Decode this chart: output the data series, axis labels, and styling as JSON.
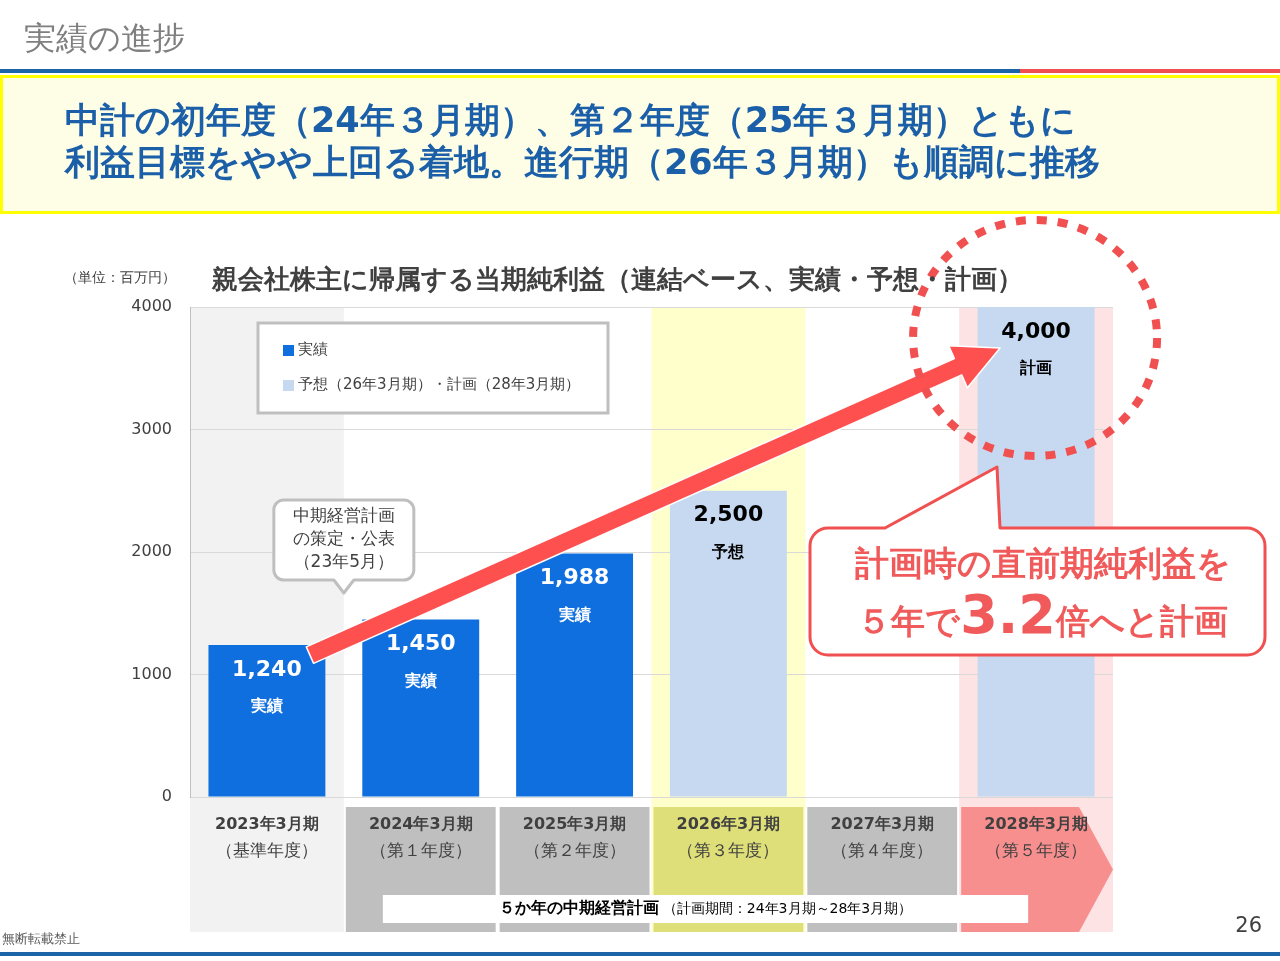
{
  "chart_data": {
    "type": "bar",
    "title": "親会社株主に帰属する当期純利益（連結ベース、実績・予想・計画）",
    "subtitle": "中計の初年度（24年３月期）、第２年度（25年３月期）ともに利益目標をやや上回る着地。進行期（26年３月期）も順調に推移",
    "ylabel": "（単位：百万円）",
    "categories": [
      "2023年3月期（基準年度）",
      "2024年3月期（第１年度）",
      "2025年3月期（第２年度）",
      "2026年3月期（第３年度）",
      "2027年3月期（第４年度）",
      "2028年3月期（第５年度）"
    ],
    "series": [
      {
        "name": "実績",
        "color": "#0f6fde",
        "values": [
          1240,
          1450,
          1988,
          null,
          null,
          null
        ],
        "value_labels": [
          "1,240\n実績",
          "1,450\n実績",
          "1,988\n実績",
          null,
          null,
          null
        ]
      },
      {
        "name": "予想（26年3月期）・計画（28年3月期）",
        "color": "#c6d9f0",
        "values": [
          null,
          null,
          null,
          2500,
          null,
          4000
        ],
        "value_labels": [
          null,
          null,
          null,
          "2,500\n予想",
          null,
          "4,000\n計画"
        ]
      }
    ],
    "ylim": [
      0,
      4000
    ],
    "yticks": [
      0,
      1000,
      2000,
      3000,
      4000
    ],
    "grid": "y",
    "legend": "top left",
    "bands": [
      {
        "axis": "x",
        "from": "2023年3月期（基準年度）",
        "to": "2023年3月期（基準年度）",
        "color": "#f2f2f2"
      },
      {
        "axis": "x",
        "from": "2026年3月期（第３年度）",
        "to": "2026年3月期（第３年度）",
        "color": "#ffffcc"
      },
      {
        "axis": "x",
        "from": "2028年3月期（第５年度）",
        "to": "2028年3月期（第５年度）",
        "color": "#fde3e3"
      }
    ],
    "annotations": [
      "実績の進捗",
      "中期経営計画の策定・公表（23年5月）",
      "計画時の直前期純利益を５年で3.2倍へと計画",
      "５か年の中期経営計画",
      "（計画期間：24年3月期～28年3月期）",
      "無断転載禁止",
      "26"
    ]
  }
}
